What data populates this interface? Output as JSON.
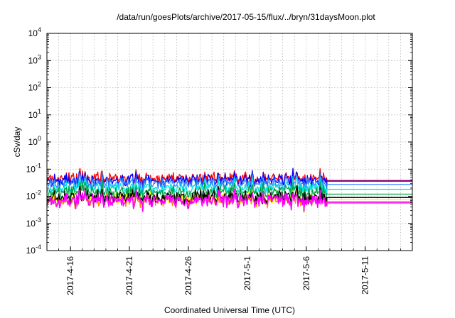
{
  "chart_data": {
    "type": "line",
    "title": "/data/run/goesPlots/archive/2017-05-15/flux/../bryn/31daysMoon.plot",
    "xlabel": "Coordinated Universal Time (UTC)",
    "ylabel": "cSv/day",
    "x_scale": "date",
    "xlim": [
      "2017-04-14",
      "2017-05-15"
    ],
    "x_ticks": [
      "2017-4-16",
      "2017-4-21",
      "2017-4-26",
      "2017-5-1",
      "2017-5-6",
      "2017-5-11"
    ],
    "y_scale": "log",
    "ylim": [
      0.0001,
      10000
    ],
    "y_ticks": [
      {
        "base": "10",
        "exp": "-4"
      },
      {
        "base": "10",
        "exp": "-3"
      },
      {
        "base": "10",
        "exp": "-2"
      },
      {
        "base": "10",
        "exp": "-1"
      },
      {
        "base": "10",
        "exp": "0"
      },
      {
        "base": "10",
        "exp": "1"
      },
      {
        "base": "10",
        "exp": "2"
      },
      {
        "base": "10",
        "exp": "3"
      },
      {
        "base": "10",
        "exp": "4"
      }
    ],
    "grid": true,
    "legend": "none",
    "data_end": "2017-05-07",
    "series": [
      {
        "color": "#ff0000",
        "typical": 0.045,
        "spread": 0.25,
        "final": 0.038
      },
      {
        "color": "#0000ff",
        "typical": 0.038,
        "spread": 0.25,
        "final": 0.036
      },
      {
        "color": "#2a7fff",
        "typical": 0.03,
        "spread": 0.22,
        "final": 0.027
      },
      {
        "color": "#00e0e0",
        "typical": 0.02,
        "spread": 0.22,
        "final": 0.018
      },
      {
        "color": "#00a040",
        "typical": 0.014,
        "spread": 0.3,
        "final": 0.012
      },
      {
        "color": "#ffff00",
        "typical": 0.008,
        "spread": 0.28,
        "final": 0.0075
      },
      {
        "color": "#ff8800",
        "typical": 0.007,
        "spread": 0.3,
        "final": 0.0065
      },
      {
        "color": "#000000",
        "typical": 0.009,
        "spread": 0.3,
        "final": 0.009
      },
      {
        "color": "#ff00ff",
        "typical": 0.0068,
        "spread": 0.32,
        "final": 0.0057
      }
    ]
  }
}
